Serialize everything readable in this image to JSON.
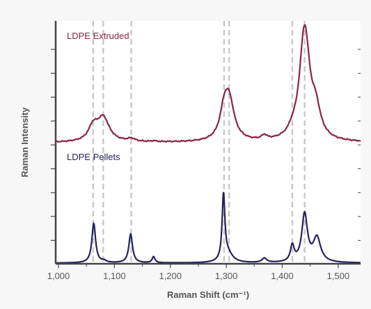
{
  "chart_data": {
    "type": "line",
    "xlabel": "Raman Shift (cm⁻¹)",
    "ylabel": "Raman Intensity",
    "xlim": [
      995,
      1540
    ],
    "x_ticks": [
      1000,
      1100,
      1200,
      1300,
      1400,
      1500
    ],
    "x_tick_labels": [
      "1,000",
      "1,100",
      "1,200",
      "1,300",
      "1,400",
      "1,500"
    ],
    "reference_lines_x": [
      1062,
      1080,
      1130,
      1296,
      1305,
      1418,
      1440
    ],
    "grid": false,
    "legend": "inline labels",
    "colors": {
      "extruded": "#8b2446",
      "pellets": "#23235e",
      "reference_line": "#c8c8c8",
      "axis": "#444444",
      "plot_background": "#ffffff",
      "page_background": "#f7f7f7"
    },
    "series": [
      {
        "name": "LDPE Extruded",
        "baseline": 0.005,
        "peaks": [
          {
            "x": 1062,
            "height": 0.1,
            "width": 10
          },
          {
            "x": 1080,
            "height": 0.17,
            "width": 13
          },
          {
            "x": 1130,
            "height": 0.02,
            "width": 8
          },
          {
            "x": 1170,
            "height": 0.006,
            "width": 5
          },
          {
            "x": 1296,
            "height": 0.17,
            "width": 9
          },
          {
            "x": 1305,
            "height": 0.28,
            "width": 11
          },
          {
            "x": 1368,
            "height": 0.03,
            "width": 6
          },
          {
            "x": 1418,
            "height": 0.03,
            "width": 8
          },
          {
            "x": 1440,
            "height": 0.8,
            "width": 11
          },
          {
            "x": 1460,
            "height": 0.18,
            "width": 10
          }
        ]
      },
      {
        "name": "LDPE Pellets",
        "baseline": 0.0,
        "peaks": [
          {
            "x": 1063,
            "height": 0.45,
            "width": 4
          },
          {
            "x": 1081,
            "height": 0.02,
            "width": 5
          },
          {
            "x": 1129,
            "height": 0.33,
            "width": 4
          },
          {
            "x": 1170,
            "height": 0.07,
            "width": 3
          },
          {
            "x": 1295,
            "height": 0.75,
            "width": 3
          },
          {
            "x": 1303,
            "height": 0.1,
            "width": 10
          },
          {
            "x": 1368,
            "height": 0.05,
            "width": 5
          },
          {
            "x": 1418,
            "height": 0.18,
            "width": 4
          },
          {
            "x": 1440,
            "height": 0.55,
            "width": 6
          },
          {
            "x": 1462,
            "height": 0.28,
            "width": 8
          }
        ]
      }
    ]
  }
}
